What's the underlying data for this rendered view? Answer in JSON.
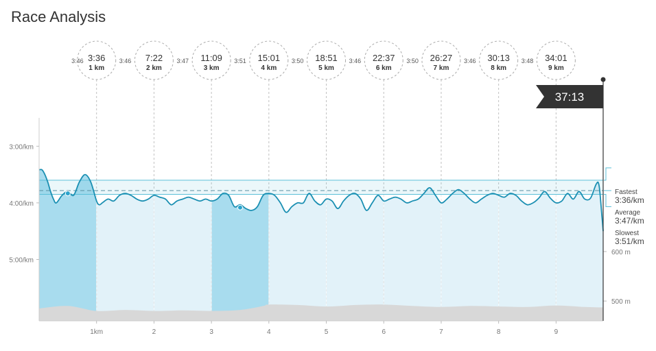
{
  "page": {
    "title": "Race Analysis"
  },
  "chart_data": {
    "type": "area",
    "title": "Race Analysis",
    "x_unit": "km",
    "x_range": [
      0,
      9.82
    ],
    "pace_axis": {
      "ticks": [
        {
          "value": 180,
          "label": "3:00/km"
        },
        {
          "value": 240,
          "label": "4:00/km"
        },
        {
          "value": 300,
          "label": "5:00/km"
        }
      ],
      "range_seconds_per_km": [
        150,
        365
      ]
    },
    "x_ticks": [
      {
        "value": 1,
        "label": "1km"
      },
      {
        "value": 2,
        "label": "2"
      },
      {
        "value": 3,
        "label": "3"
      },
      {
        "value": 4,
        "label": "4"
      },
      {
        "value": 5,
        "label": "5"
      },
      {
        "value": 6,
        "label": "6"
      },
      {
        "value": 7,
        "label": "7"
      },
      {
        "value": 8,
        "label": "8"
      },
      {
        "value": 9,
        "label": "9"
      }
    ],
    "splits": [
      {
        "km": 1,
        "km_label": "1 km",
        "time": "3:36"
      },
      {
        "km": 2,
        "km_label": "2 km",
        "time": "7:22"
      },
      {
        "km": 3,
        "km_label": "3 km",
        "time": "11:09"
      },
      {
        "km": 4,
        "km_label": "4 km",
        "time": "15:01"
      },
      {
        "km": 5,
        "km_label": "5 km",
        "time": "18:51"
      },
      {
        "km": 6,
        "km_label": "6 km",
        "time": "22:37"
      },
      {
        "km": 7,
        "km_label": "7 km",
        "time": "26:27"
      },
      {
        "km": 8,
        "km_label": "8 km",
        "time": "30:13"
      },
      {
        "km": 9,
        "km_label": "9 km",
        "time": "34:01"
      }
    ],
    "split_paces": [
      {
        "between": [
          1,
          2
        ],
        "label": "3:46"
      },
      {
        "between": [
          2,
          3
        ],
        "label": "3:47"
      },
      {
        "between": [
          3,
          4
        ],
        "label": "3:51"
      },
      {
        "between": [
          4,
          5
        ],
        "label": "3:50"
      },
      {
        "between": [
          5,
          6
        ],
        "label": "3:46"
      },
      {
        "between": [
          6,
          7
        ],
        "label": "3:50"
      },
      {
        "between": [
          7,
          8
        ],
        "label": "3:46"
      },
      {
        "between": [
          8,
          9
        ],
        "label": "3:48"
      }
    ],
    "first_split_pace": "3:46",
    "finish_time": "37:13",
    "summary": {
      "fastest_label": "Fastest",
      "fastest_value": "3:36/km",
      "fastest_seconds": 216,
      "average_label": "Average",
      "average_value": "3:47/km",
      "average_seconds": 227,
      "slowest_label": "Slowest",
      "slowest_value": "3:51/km",
      "slowest_seconds": 231
    },
    "highlighted_kms": [
      [
        0,
        1
      ],
      [
        3,
        4
      ]
    ],
    "markers": [
      {
        "km": 0.5,
        "pace_seconds": 230
      },
      {
        "km": 3.5,
        "pace_seconds": 245
      }
    ],
    "pace_series": {
      "name": "Pace",
      "x": [
        0,
        0.05,
        0.1,
        0.15,
        0.2,
        0.25,
        0.3,
        0.4,
        0.5,
        0.6,
        0.7,
        0.8,
        0.9,
        1.0,
        1.05,
        1.1,
        1.2,
        1.3,
        1.4,
        1.5,
        1.6,
        1.7,
        1.8,
        1.9,
        2.0,
        2.1,
        2.2,
        2.3,
        2.4,
        2.5,
        2.6,
        2.7,
        2.8,
        2.9,
        3.0,
        3.1,
        3.2,
        3.3,
        3.4,
        3.5,
        3.6,
        3.7,
        3.8,
        3.9,
        4.0,
        4.1,
        4.2,
        4.3,
        4.4,
        4.5,
        4.6,
        4.7,
        4.8,
        4.9,
        5.0,
        5.1,
        5.2,
        5.3,
        5.4,
        5.5,
        5.6,
        5.7,
        5.8,
        5.9,
        6.0,
        6.1,
        6.2,
        6.3,
        6.4,
        6.5,
        6.6,
        6.7,
        6.8,
        6.9,
        7.0,
        7.1,
        7.2,
        7.3,
        7.4,
        7.5,
        7.6,
        7.7,
        7.8,
        7.9,
        8.0,
        8.1,
        8.2,
        8.3,
        8.4,
        8.5,
        8.6,
        8.7,
        8.8,
        8.9,
        9.0,
        9.1,
        9.2,
        9.3,
        9.4,
        9.5,
        9.6,
        9.7,
        9.75,
        9.8,
        9.82
      ],
      "y": [
        205,
        205,
        210,
        218,
        228,
        236,
        240,
        232,
        228,
        232,
        218,
        210,
        218,
        238,
        242,
        240,
        236,
        238,
        232,
        230,
        232,
        236,
        238,
        236,
        232,
        234,
        236,
        242,
        238,
        236,
        234,
        236,
        238,
        236,
        238,
        236,
        230,
        232,
        244,
        242,
        246,
        248,
        244,
        232,
        230,
        232,
        240,
        250,
        244,
        240,
        240,
        230,
        238,
        242,
        236,
        238,
        246,
        238,
        232,
        230,
        236,
        248,
        240,
        232,
        238,
        236,
        234,
        236,
        240,
        238,
        236,
        230,
        224,
        232,
        240,
        236,
        230,
        226,
        230,
        236,
        240,
        236,
        232,
        230,
        232,
        234,
        230,
        232,
        238,
        242,
        240,
        235,
        228,
        235,
        240,
        238,
        230,
        236,
        228,
        236,
        235,
        220,
        222,
        255,
        270
      ]
    },
    "elevation_axis": {
      "ticks": [
        {
          "value": 600,
          "label": "600 m"
        },
        {
          "value": 500,
          "label": "500 m"
        }
      ],
      "range_m": [
        460,
        870
      ]
    },
    "elevation_series": {
      "name": "Elevation",
      "x": [
        0,
        0.5,
        1.0,
        1.5,
        2.0,
        2.5,
        3.0,
        3.5,
        3.9,
        4.0,
        4.5,
        5.0,
        5.5,
        6.0,
        6.5,
        7.0,
        7.5,
        8.0,
        8.5,
        9.0,
        9.5,
        9.82
      ],
      "y": [
        485,
        490,
        480,
        482,
        480,
        481,
        480,
        482,
        490,
        493,
        492,
        489,
        492,
        493,
        490,
        488,
        490,
        489,
        488,
        491,
        488,
        487
      ]
    },
    "colors": {
      "line": "#1a8fb2",
      "highlight_fill": "#a8dcee",
      "band_fill": "#e2f2f9",
      "range_band": "#5bbfd8",
      "elevation": "#d8d8d8",
      "axis": "#999999",
      "label": "#777777",
      "circle_border": "#aaaaaa",
      "finish_flag": "#333333",
      "background": "#ffffff"
    }
  }
}
